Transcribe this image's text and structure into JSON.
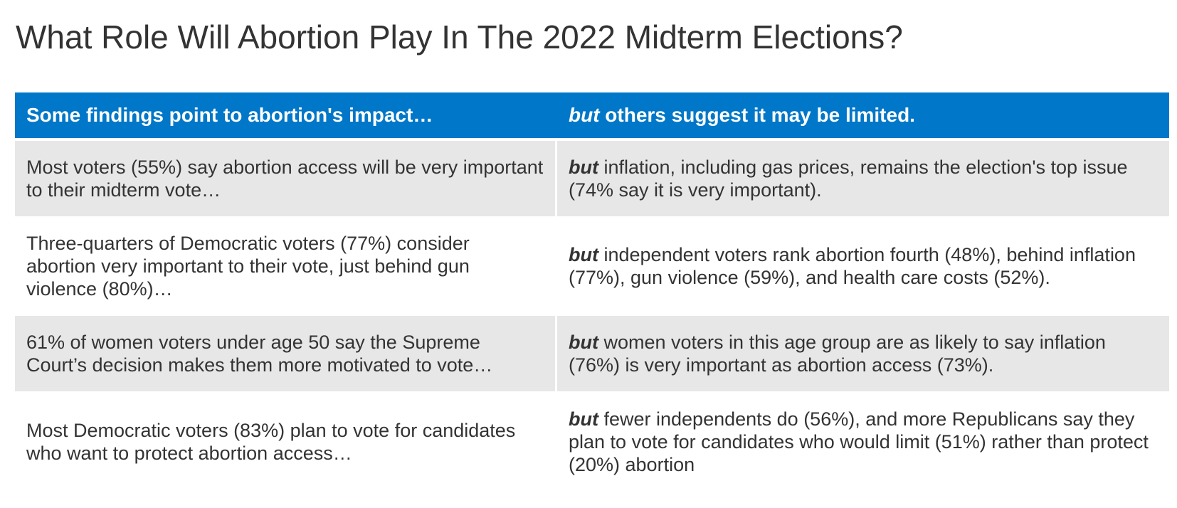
{
  "title": "What Role Will Abortion Play In The 2022 Midterm Elections?",
  "table": {
    "header": {
      "left": "Some findings point to abortion's impact…",
      "right_emph": "but",
      "right_rest": " others suggest it may be limited."
    },
    "rows": [
      {
        "left": "Most voters (55%) say abortion access will be very important to their midterm vote…",
        "right_emph": "but",
        "right_rest": " inflation, including gas prices, remains the election's top issue (74% say it is very important)."
      },
      {
        "left": "Three-quarters of Democratic voters (77%) consider abortion very important to their vote, just behind gun violence (80%)…",
        "right_emph": "but",
        "right_rest": " independent voters rank abortion fourth (48%), behind inflation (77%), gun violence (59%), and health care costs (52%)."
      },
      {
        "left": "61% of women voters under age 50 say the Supreme Court’s decision makes them more motivated to vote…",
        "right_emph": "but",
        "right_rest": " women voters in this age group are as likely to say inflation (76%) is very important as abortion access (73%)."
      },
      {
        "left": "Most Democratic voters (83%) plan to vote for candidates who want to protect abortion access…",
        "right_emph": "but",
        "right_rest": " fewer independents do (56%), and more Republicans say they plan to vote for candidates who would limit (51%) rather than protect (20%) abortion"
      }
    ]
  },
  "colors": {
    "header_bg": "#0077c8",
    "shaded_row_bg": "#e7e7e7",
    "text": "#333333"
  }
}
